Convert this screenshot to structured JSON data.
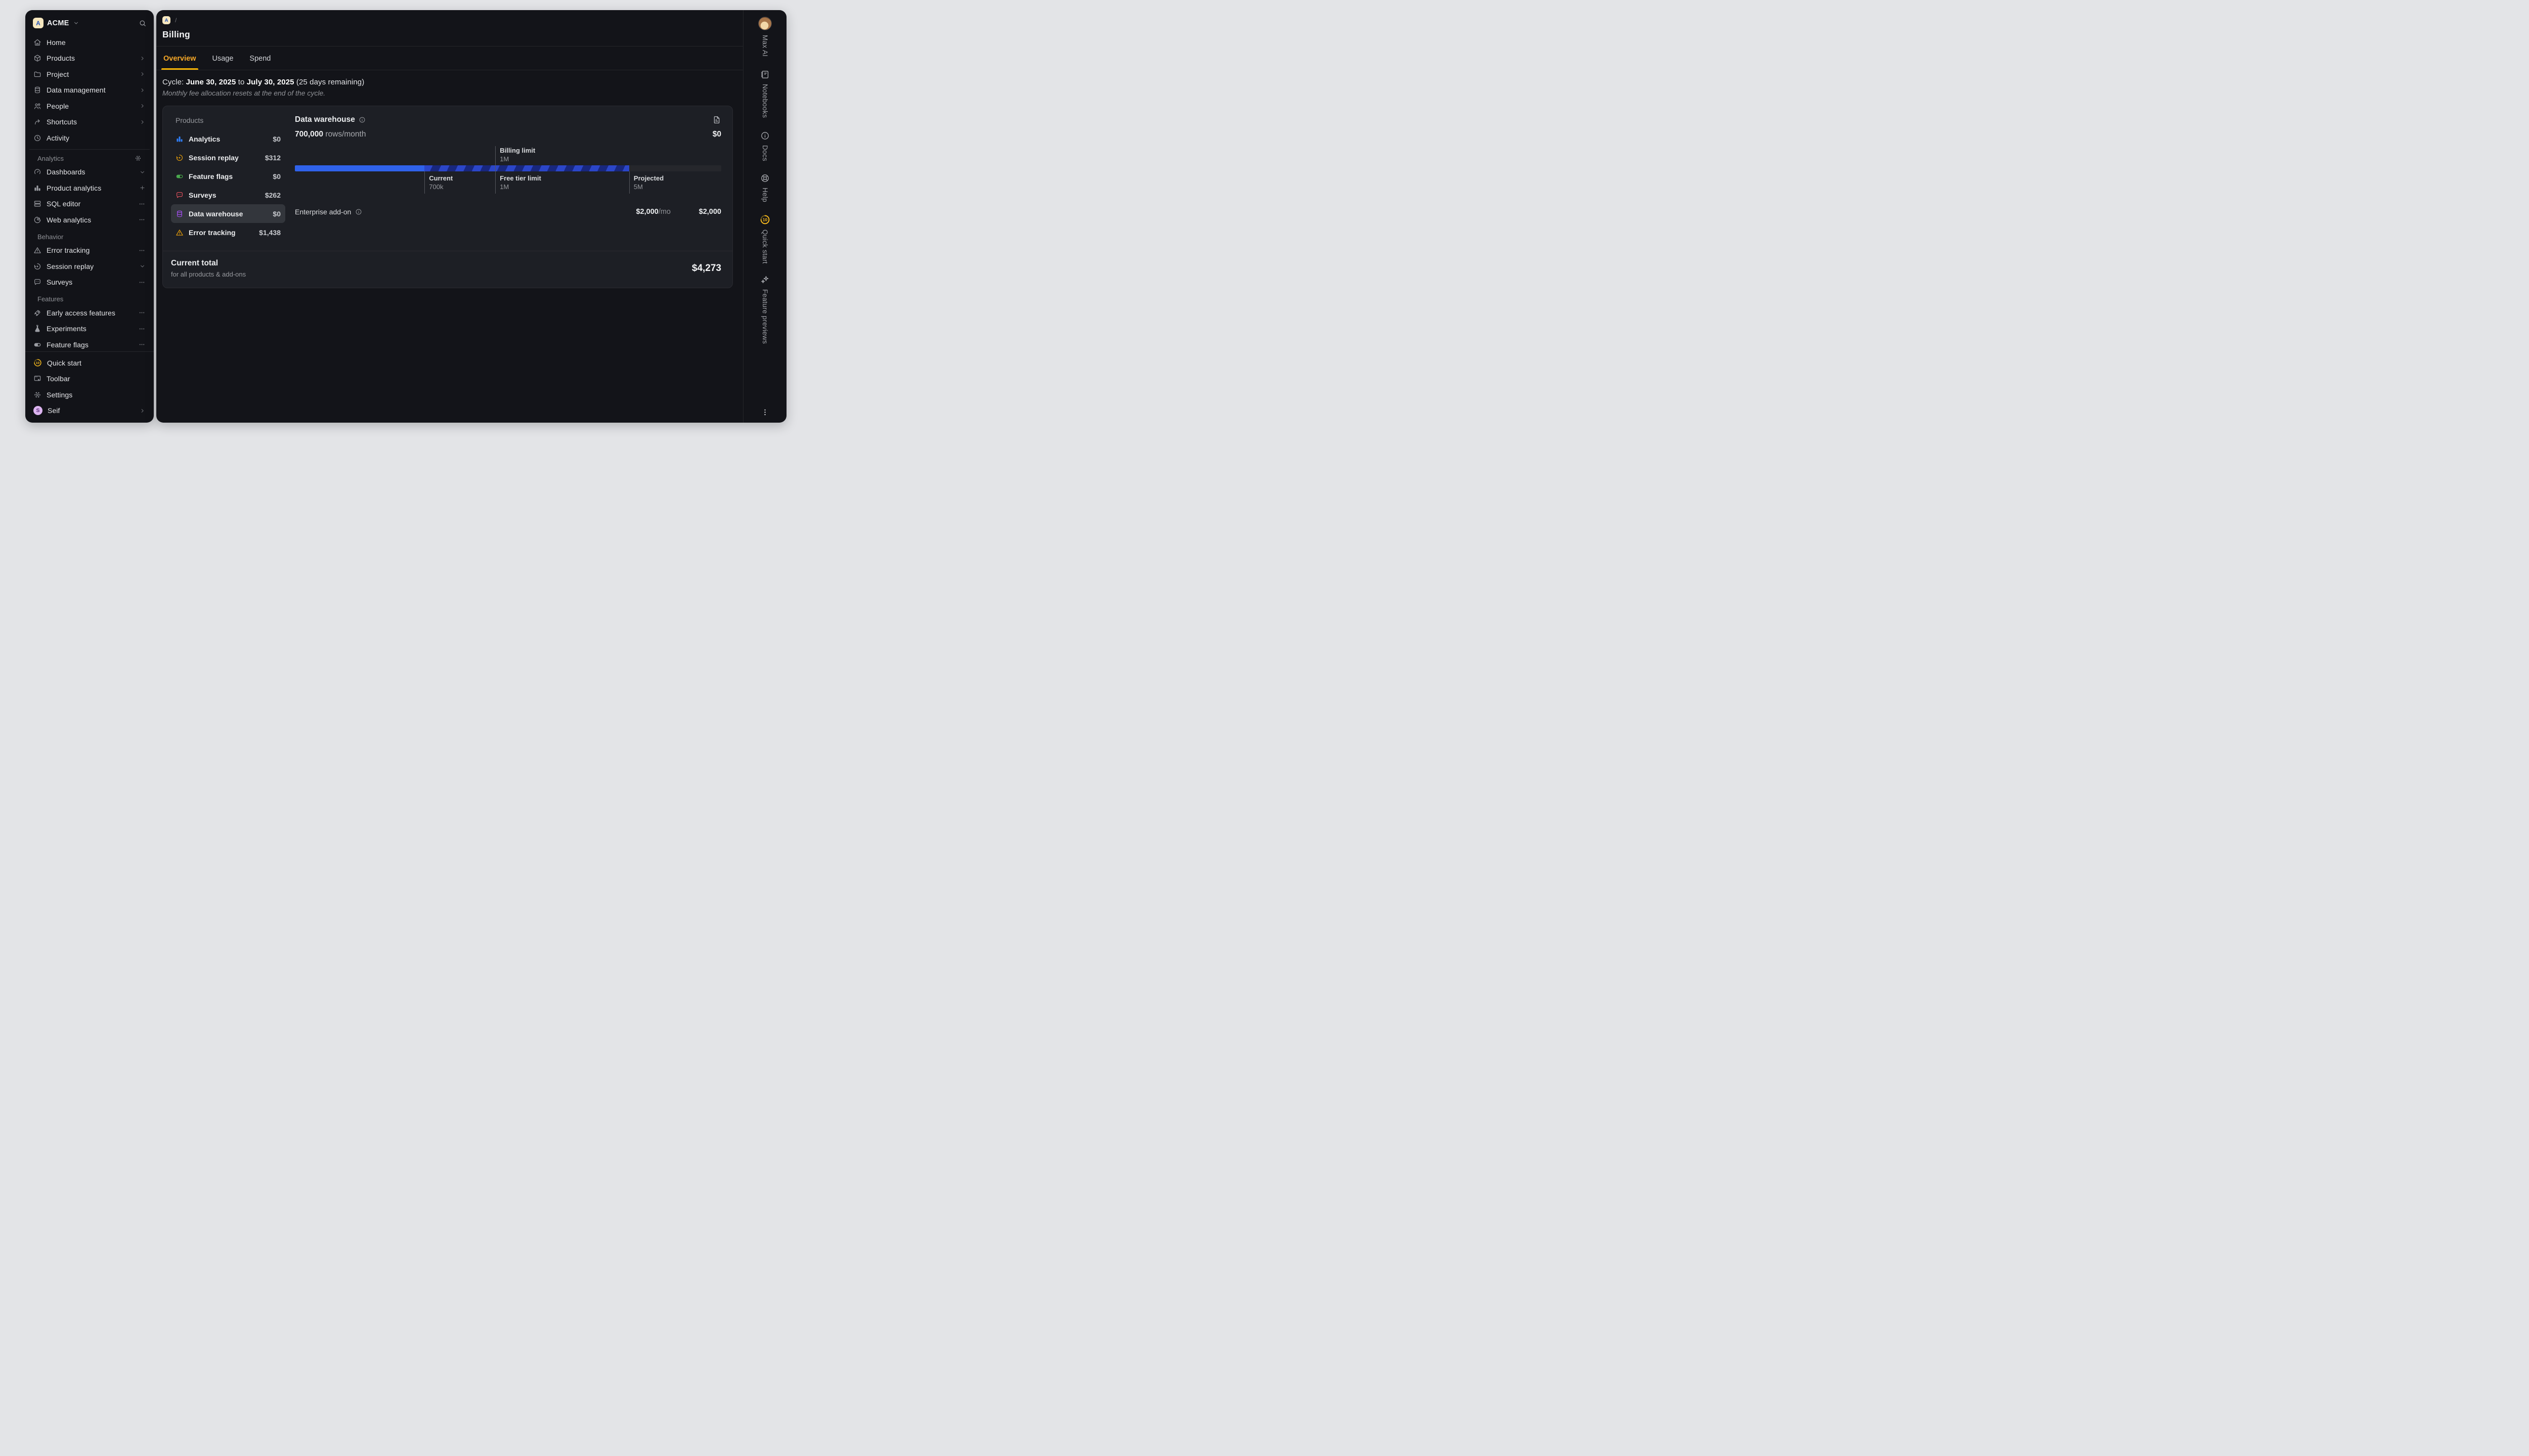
{
  "workspace": {
    "name": "ACME",
    "initial": "A"
  },
  "sidebar": {
    "primary": [
      {
        "label": "Home"
      },
      {
        "label": "Products"
      },
      {
        "label": "Project"
      },
      {
        "label": "Data management"
      },
      {
        "label": "People"
      },
      {
        "label": "Shortcuts"
      },
      {
        "label": "Activity"
      }
    ],
    "sections": [
      {
        "title": "Analytics",
        "items": [
          {
            "label": "Dashboards"
          },
          {
            "label": "Product analytics"
          },
          {
            "label": "SQL editor"
          },
          {
            "label": "Web analytics"
          }
        ]
      },
      {
        "title": "Behavior",
        "items": [
          {
            "label": "Error tracking"
          },
          {
            "label": "Session replay"
          },
          {
            "label": "Surveys"
          }
        ]
      },
      {
        "title": "Features",
        "items": [
          {
            "label": "Early access features"
          },
          {
            "label": "Experiments"
          },
          {
            "label": "Feature flags"
          }
        ]
      }
    ],
    "bottom": [
      {
        "label": "Quick start",
        "badge": "10"
      },
      {
        "label": "Toolbar"
      },
      {
        "label": "Settings"
      },
      {
        "label": "Seif",
        "initial": "S"
      }
    ]
  },
  "header": {
    "breadcrumb_initial": "A",
    "breadcrumb_separator": "/",
    "title": "Billing"
  },
  "tabs": [
    {
      "label": "Overview"
    },
    {
      "label": "Usage"
    },
    {
      "label": "Spend"
    }
  ],
  "cycle": {
    "prefix": "Cycle:",
    "start_date": "June 30, 2025",
    "joiner": "to",
    "end_date": "July 30, 2025",
    "remaining": "(25 days remaining)",
    "note": "Monthly fee allocation resets at the end of the cycle."
  },
  "products_panel": {
    "header": "Products",
    "items": [
      {
        "label": "Analytics",
        "price": "$0"
      },
      {
        "label": "Session replay",
        "price": "$312"
      },
      {
        "label": "Feature flags",
        "price": "$0"
      },
      {
        "label": "Surveys",
        "price": "$262"
      },
      {
        "label": "Data warehouse",
        "price": "$0"
      },
      {
        "label": "Error tracking",
        "price": "$1,438"
      }
    ]
  },
  "detail": {
    "title": "Data warehouse",
    "usage_value": "700,000",
    "usage_unit": " rows/month",
    "amount": "$0",
    "addon": {
      "label": "Enterprise add-on",
      "rate": "$2,000",
      "rate_unit": "/mo",
      "amount": "$2,000"
    }
  },
  "chart_data": {
    "type": "bar",
    "title": "Data warehouse usage (rows/month)",
    "current_value": "700k",
    "free_tier_limit": "1M",
    "billing_limit": "1M",
    "projected_value": "5M",
    "markers": [
      {
        "label": "Billing limit",
        "value": "1M",
        "pct": 47,
        "position": "above"
      },
      {
        "label": "Current",
        "value": "700k",
        "pct": 30.4,
        "position": "below"
      },
      {
        "label": "Free tier limit",
        "value": "1M",
        "pct": 47,
        "position": "below"
      },
      {
        "label": "Projected",
        "value": "5M",
        "pct": 78.4,
        "position": "below"
      }
    ],
    "segments": [
      {
        "name": "current",
        "from_pct": 0,
        "to_pct": 30.4,
        "style": "solid-blue"
      },
      {
        "name": "projected",
        "from_pct": 30.4,
        "to_pct": 78.4,
        "style": "striped-blue"
      },
      {
        "name": "remaining",
        "from_pct": 78.4,
        "to_pct": 100,
        "style": "gray-track"
      }
    ]
  },
  "summary": {
    "title": "Current total",
    "subtitle": "for all products & add-ons",
    "amount": "$4,273"
  },
  "right_rail": {
    "items": [
      {
        "label": "Max AI"
      },
      {
        "label": "Notebooks"
      },
      {
        "label": "Docs"
      },
      {
        "label": "Help"
      },
      {
        "label": "Quick start",
        "badge": "10"
      },
      {
        "label": "Feature previews"
      }
    ]
  },
  "colors": {
    "accent_yellow": "#f7b405",
    "active_tab_text": "#f7a827",
    "bar_blue": "#2f62ea",
    "bar_striped_dark": "#18277e",
    "selected_row_bg": "#33363c",
    "panel_bg": "#131419",
    "card_bg": "#1d1f25"
  }
}
